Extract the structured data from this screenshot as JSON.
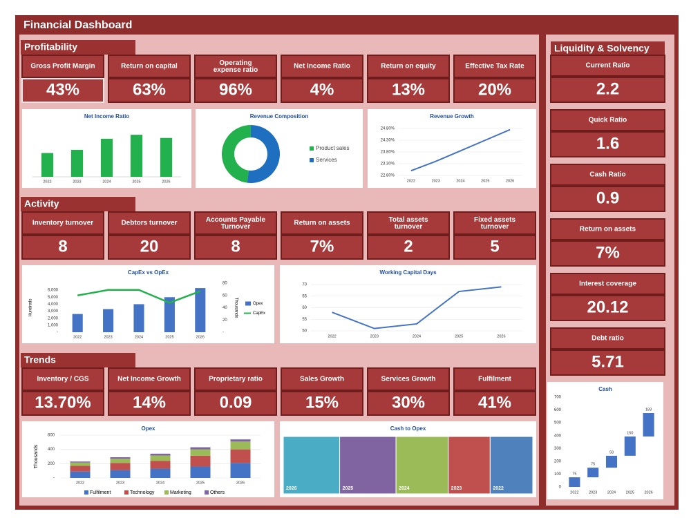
{
  "title": "Financial Dashboard",
  "sections": [
    {
      "title": "Profitability",
      "kpis": [
        {
          "label": "Gross Profit Margin",
          "value": "43%"
        },
        {
          "label": "Return on capital",
          "value": "63%"
        },
        {
          "label": "Operating expense ratio",
          "value": "96%"
        },
        {
          "label": "Net Income Ratio",
          "value": "4%"
        },
        {
          "label": "Return on equity",
          "value": "13%"
        },
        {
          "label": "Effective Tax Rate",
          "value": "20%"
        }
      ]
    },
    {
      "title": "Activity",
      "kpis": [
        {
          "label": "Inventory turnover",
          "value": "8"
        },
        {
          "label": "Debtors turnover",
          "value": "20"
        },
        {
          "label": "Accounts Payable Turnover",
          "value": "8"
        },
        {
          "label": "Return on assets",
          "value": "7%"
        },
        {
          "label": "Total assets turnover",
          "value": "2"
        },
        {
          "label": "Fixed assets turnover",
          "value": "5"
        }
      ]
    },
    {
      "title": "Trends",
      "kpis": [
        {
          "label": "Inventory / CGS",
          "value": "13.70%"
        },
        {
          "label": "Net Income Growth",
          "value": "14%"
        },
        {
          "label": "Proprietary ratio",
          "value": "0.09"
        },
        {
          "label": "Sales Growth",
          "value": "15%"
        },
        {
          "label": "Services Growth",
          "value": "30%"
        },
        {
          "label": "Fulfilment",
          "value": "41%"
        }
      ]
    },
    {
      "title": "Liquidity & Solvency",
      "kpis": [
        {
          "label": "Current Ratio",
          "value": "2.2"
        },
        {
          "label": "Quick Ratio",
          "value": "1.6"
        },
        {
          "label": "Cash Ratio",
          "value": "0.9"
        },
        {
          "label": "Return on assets",
          "value": "7%"
        },
        {
          "label": "Interest coverage",
          "value": "20.12"
        },
        {
          "label": "Debt ratio",
          "value": "5.71"
        }
      ]
    }
  ],
  "chart_data": [
    {
      "type": "bar",
      "title": "Net Income Ratio",
      "categories": [
        "2022",
        "2023",
        "2024",
        "2025",
        "2026"
      ],
      "values": [
        3,
        3.4,
        4.8,
        5.3,
        4.9
      ],
      "color": "#22b14c"
    },
    {
      "type": "pie",
      "donut": true,
      "title": "Revenue Composition",
      "categories": [
        "Product sales",
        "Services"
      ],
      "values": [
        48,
        52
      ],
      "colors": [
        "#22b14c",
        "#1f6fc0"
      ],
      "legend": "right"
    },
    {
      "type": "line",
      "title": "Revenue Growth",
      "categories": [
        "2022",
        "2023",
        "2024",
        "2025",
        "2026"
      ],
      "values": [
        23.0,
        23.4,
        23.85,
        24.3,
        24.75
      ],
      "color": "#4472c4",
      "ylim": [
        22.8,
        24.8
      ],
      "yticks": [
        {
          "value": 22.8,
          "label": "22.80%"
        },
        {
          "value": 23.3,
          "label": "23.30%"
        },
        {
          "value": 23.8,
          "label": "23.80%"
        },
        {
          "value": 24.3,
          "label": "24.30%"
        },
        {
          "value": 24.8,
          "label": "24.80%"
        }
      ]
    },
    {
      "type": "combo",
      "title": "CapEx vs OpEx",
      "categories": [
        "2022",
        "2023",
        "2024",
        "2025",
        "2026"
      ],
      "series": [
        {
          "name": "Opex",
          "color": "#4472c4",
          "kind": "bar",
          "values": [
            2600,
            3300,
            4000,
            5000,
            6300
          ]
        },
        {
          "name": "CapEx",
          "color": "#22b14c",
          "kind": "line",
          "axis": "y2",
          "values": [
            60,
            69,
            69,
            48,
            67
          ]
        }
      ],
      "ylabel": "Hundreds",
      "y2label": "Thousands",
      "legend": "right",
      "ylim": [
        0,
        7000
      ],
      "yticks": [
        {
          "value": 0,
          "label": "-"
        },
        {
          "value": 1000,
          "label": "1,000"
        },
        {
          "value": 2000,
          "label": "2,000"
        },
        {
          "value": 3000,
          "label": "3,000"
        },
        {
          "value": 4000,
          "label": "4,000"
        },
        {
          "value": 5000,
          "label": "5,000"
        },
        {
          "value": 6000,
          "label": "6,000"
        }
      ],
      "y2lim": [
        0,
        80
      ],
      "y2ticks": [
        {
          "value": 0,
          "label": "-"
        },
        20,
        40,
        60,
        80
      ]
    },
    {
      "type": "line",
      "title": "Working Capital Days",
      "categories": [
        "2022",
        "2023",
        "2024",
        "2025",
        "2026"
      ],
      "values": [
        58,
        51,
        53,
        67,
        69
      ],
      "color": "#4472c4",
      "ylim": [
        50,
        70
      ],
      "yticks": [
        50,
        55,
        60,
        65,
        70
      ]
    },
    {
      "type": "stacked_bar",
      "title": "Opex",
      "categories": [
        "2022",
        "2023",
        "2024",
        "2025",
        "2026"
      ],
      "ylabel": "Thousands",
      "legend": "bottom",
      "ylim": [
        0,
        600
      ],
      "yticks": [
        {
          "value": 0,
          "label": "-"
        },
        200,
        400,
        600
      ],
      "series": [
        {
          "name": "Fulfilment",
          "color": "#4472c4",
          "values": [
            90,
            110,
            130,
            160,
            210
          ]
        },
        {
          "name": "Technology",
          "color": "#c0504d",
          "values": [
            80,
            100,
            110,
            150,
            190
          ]
        },
        {
          "name": "Marketing",
          "color": "#9bbb59",
          "values": [
            45,
            60,
            75,
            90,
            110
          ]
        },
        {
          "name": "Others",
          "color": "#8064a2",
          "values": [
            15,
            20,
            25,
            30,
            30
          ]
        }
      ]
    },
    {
      "type": "treemap",
      "title": "Cash to Opex",
      "categories": [
        "2026",
        "2025",
        "2024",
        "2023",
        "2022"
      ],
      "values": [
        82,
        82,
        76,
        61,
        62
      ],
      "colors": [
        "#4bacc6",
        "#8064a2",
        "#9bbb59",
        "#c0504d",
        "#4f81bd"
      ]
    },
    {
      "type": "waterfall",
      "title": "Cash",
      "categories": [
        "2022",
        "2023",
        "2024",
        "2025",
        "2026"
      ],
      "values": [
        75,
        75,
        93,
        150,
        183
      ],
      "color": "#4472c4",
      "ylim": [
        0,
        700
      ],
      "yticks": [
        0,
        100,
        200,
        300,
        400,
        500,
        600,
        700
      ]
    }
  ]
}
